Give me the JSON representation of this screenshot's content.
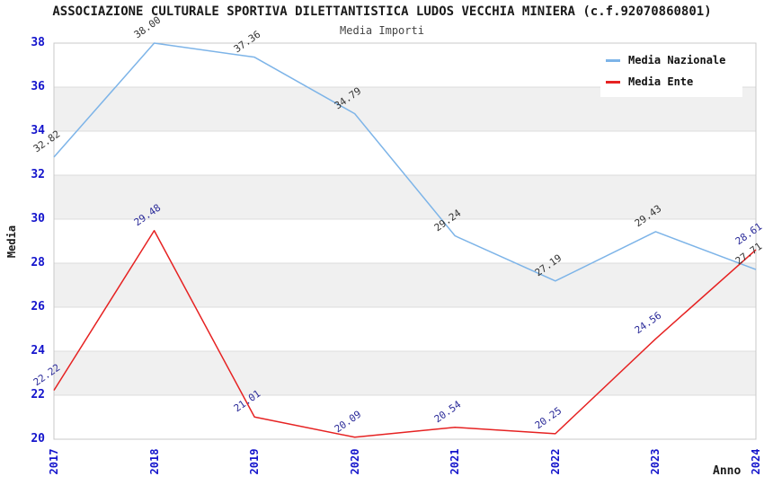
{
  "title": "ASSOCIAZIONE CULTURALE SPORTIVA DILETTANTISTICA LUDOS VECCHIA MINIERA (c.f.92070860801)",
  "subtitle": "Media Importi",
  "chart_data": {
    "type": "line",
    "title": "Media Importi",
    "xlabel": "Anno",
    "ylabel": "Media",
    "categories": [
      "2017",
      "2018",
      "2019",
      "2020",
      "2021",
      "2022",
      "2023",
      "2024"
    ],
    "series": [
      {
        "name": "Media Nazionale",
        "color": "#7db4e8",
        "label_color": "#333333",
        "values": [
          32.82,
          38.0,
          37.36,
          34.79,
          29.24,
          27.19,
          29.43,
          27.71
        ]
      },
      {
        "name": "Media Ente",
        "color": "#e62222",
        "label_color": "#2b2b99",
        "values": [
          22.22,
          29.48,
          21.01,
          20.09,
          20.54,
          20.25,
          24.56,
          28.61
        ]
      }
    ],
    "ylim": [
      20,
      38
    ],
    "y_ticks": [
      20,
      22,
      24,
      26,
      28,
      30,
      32,
      34,
      36,
      38
    ],
    "grid": true,
    "band_fill": true,
    "legend_position": "top-right"
  },
  "colors": {
    "axis_tick_label": "#1414cc",
    "band": "#f0f0f0",
    "gridline": "#dcdcdc",
    "border": "#c8c8c8",
    "title": "#1a1a1a",
    "subtitle": "#444444",
    "legend_text": "#111111",
    "background": "#ffffff"
  }
}
